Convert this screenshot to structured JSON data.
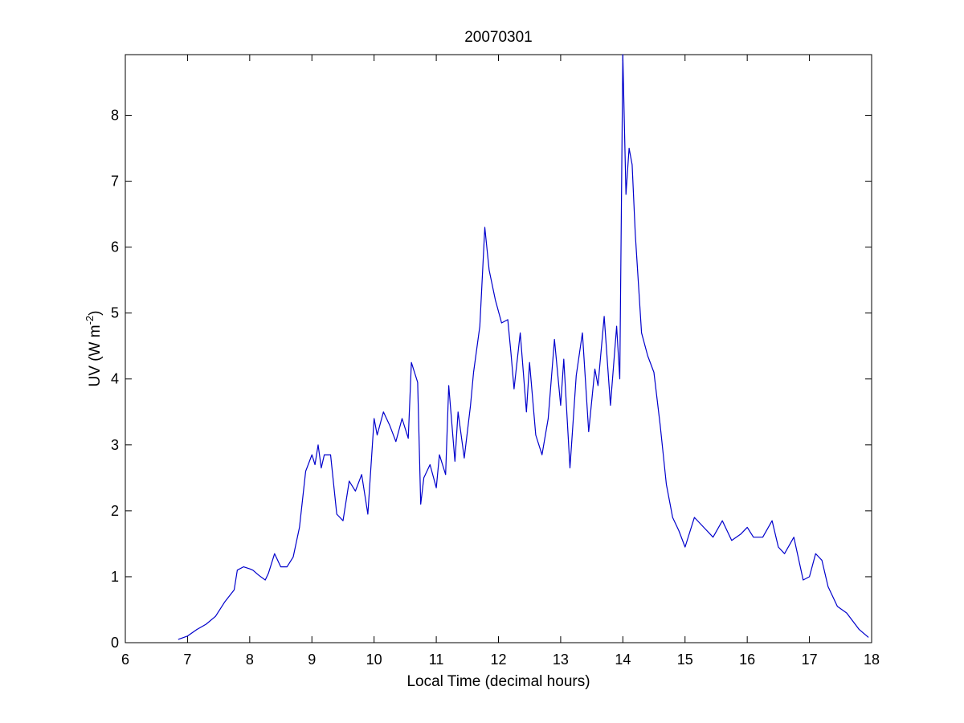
{
  "chart_data": {
    "type": "line",
    "title": "20070301",
    "xlabel": "Local Time (decimal hours)",
    "ylabel": {
      "base": "UV (W m",
      "sup": "-2",
      "close": ")"
    },
    "xlim": [
      6,
      18
    ],
    "ylim": [
      0,
      8.92
    ],
    "xticks": [
      6,
      7,
      8,
      9,
      10,
      11,
      12,
      13,
      14,
      15,
      16,
      17,
      18
    ],
    "yticks": [
      0,
      1,
      2,
      3,
      4,
      5,
      6,
      7,
      8
    ],
    "grid": false,
    "box": true,
    "series": [
      {
        "color": "#0000cc",
        "x": [
          6.85,
          7.0,
          7.15,
          7.3,
          7.45,
          7.6,
          7.75,
          7.8,
          7.9,
          8.0,
          8.05,
          8.15,
          8.25,
          8.3,
          8.4,
          8.5,
          8.6,
          8.7,
          8.8,
          8.9,
          9.0,
          9.05,
          9.1,
          9.15,
          9.2,
          9.3,
          9.4,
          9.5,
          9.6,
          9.7,
          9.8,
          9.9,
          10.0,
          10.05,
          10.15,
          10.25,
          10.35,
          10.45,
          10.55,
          10.6,
          10.7,
          10.75,
          10.8,
          10.9,
          11.0,
          11.05,
          11.15,
          11.2,
          11.3,
          11.35,
          11.45,
          11.55,
          11.6,
          11.7,
          11.78,
          11.85,
          11.95,
          12.05,
          12.15,
          12.2,
          12.25,
          12.35,
          12.45,
          12.5,
          12.6,
          12.7,
          12.8,
          12.9,
          13.0,
          13.05,
          13.15,
          13.25,
          13.35,
          13.45,
          13.55,
          13.6,
          13.7,
          13.8,
          13.9,
          13.95,
          14.0,
          14.05,
          14.1,
          14.15,
          14.2,
          14.3,
          14.4,
          14.5,
          14.6,
          14.7,
          14.8,
          14.9,
          15.0,
          15.15,
          15.3,
          15.45,
          15.6,
          15.75,
          15.9,
          16.0,
          16.1,
          16.25,
          16.4,
          16.5,
          16.6,
          16.75,
          16.9,
          17.0,
          17.1,
          17.2,
          17.3,
          17.45,
          17.6,
          17.8,
          17.95
        ],
        "y": [
          0.05,
          0.1,
          0.2,
          0.28,
          0.4,
          0.62,
          0.8,
          1.1,
          1.15,
          1.12,
          1.1,
          1.02,
          0.95,
          1.05,
          1.35,
          1.15,
          1.15,
          1.3,
          1.75,
          2.6,
          2.85,
          2.7,
          3.0,
          2.65,
          2.85,
          2.85,
          1.95,
          1.85,
          2.45,
          2.3,
          2.55,
          1.95,
          3.4,
          3.15,
          3.5,
          3.3,
          3.05,
          3.4,
          3.1,
          4.25,
          3.95,
          2.1,
          2.5,
          2.7,
          2.35,
          2.85,
          2.55,
          3.9,
          2.75,
          3.5,
          2.8,
          3.6,
          4.1,
          4.8,
          6.3,
          5.65,
          5.2,
          4.85,
          4.9,
          4.4,
          3.85,
          4.7,
          3.5,
          4.25,
          3.15,
          2.85,
          3.4,
          4.6,
          3.6,
          4.3,
          2.65,
          4.05,
          4.7,
          3.2,
          4.15,
          3.9,
          4.95,
          3.6,
          4.8,
          4.0,
          8.92,
          6.8,
          7.5,
          7.25,
          6.2,
          4.7,
          4.35,
          4.1,
          3.3,
          2.4,
          1.9,
          1.7,
          1.45,
          1.9,
          1.75,
          1.6,
          1.85,
          1.55,
          1.65,
          1.75,
          1.6,
          1.6,
          1.85,
          1.45,
          1.35,
          1.6,
          0.95,
          1.0,
          1.35,
          1.25,
          0.85,
          0.55,
          0.45,
          0.2,
          0.08
        ]
      }
    ]
  }
}
